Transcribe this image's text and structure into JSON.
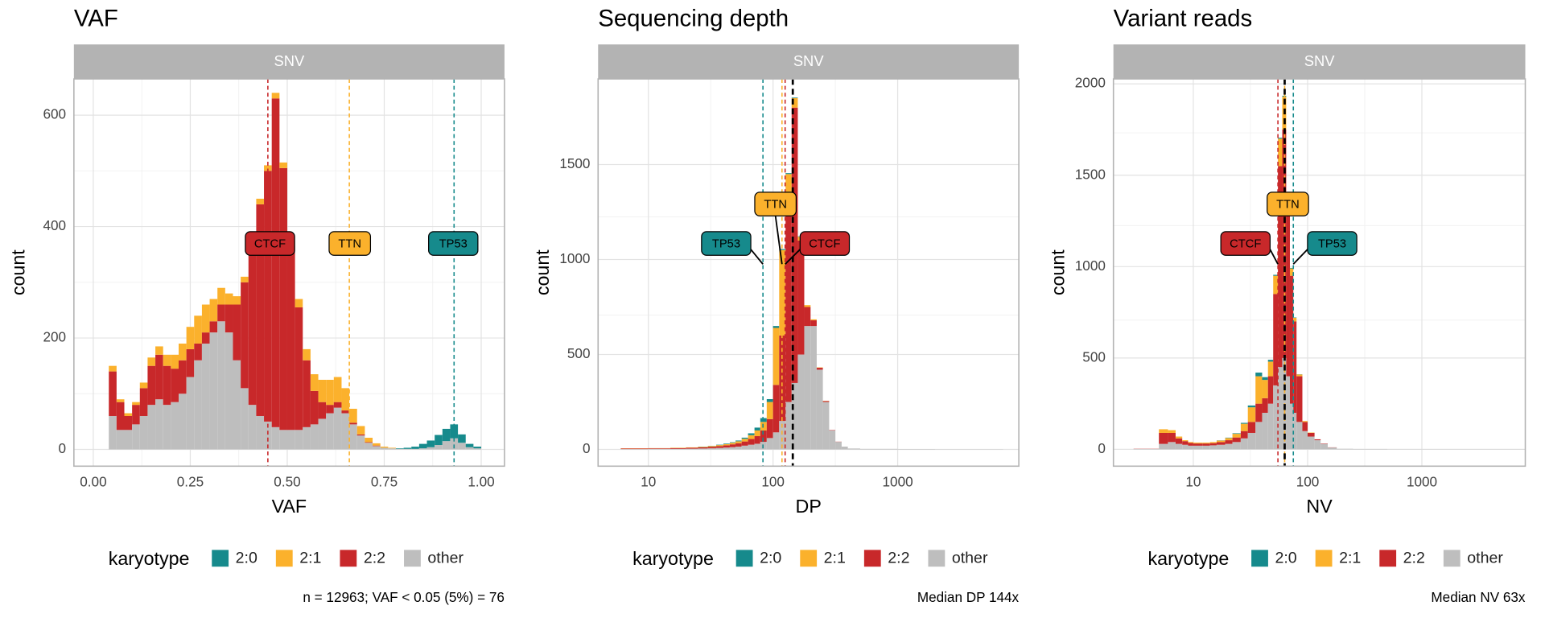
{
  "chart_data": [
    {
      "type": "histogram",
      "title": "VAF",
      "strip": "SNV",
      "x_label": "VAF",
      "y_label": "count",
      "log_x": false,
      "grid": true,
      "legend_title": "karyotype",
      "caption": "n = 12963; VAF < 0.05 (5%) = 76",
      "xlim": [
        -0.05,
        1.06
      ],
      "ylim": [
        -30,
        665
      ],
      "xticks": [
        {
          "value": 0,
          "label": "0.00"
        },
        {
          "value": 0.25,
          "label": "0.25"
        },
        {
          "value": 0.5,
          "label": "0.50"
        },
        {
          "value": 0.75,
          "label": "0.75"
        },
        {
          "value": 1,
          "label": "1.00"
        }
      ],
      "yticks": [
        0,
        200,
        400,
        600
      ],
      "bins": [
        0.04,
        0.06,
        0.08,
        0.1,
        0.12,
        0.14,
        0.16,
        0.18,
        0.2,
        0.22,
        0.24,
        0.26,
        0.28,
        0.3,
        0.32,
        0.34,
        0.36,
        0.38,
        0.4,
        0.42,
        0.44,
        0.46,
        0.48,
        0.5,
        0.52,
        0.54,
        0.56,
        0.58,
        0.6,
        0.62,
        0.64,
        0.66,
        0.68,
        0.7,
        0.72,
        0.74,
        0.76,
        0.78,
        0.8,
        0.82,
        0.84,
        0.86,
        0.88,
        0.9,
        0.92,
        0.94,
        0.96,
        0.98,
        1.0
      ],
      "series": [
        {
          "name": "2:0",
          "color": "#168a8c",
          "values": [
            0,
            0,
            0,
            0,
            0,
            0,
            0,
            0,
            0,
            0,
            0,
            0,
            0,
            0,
            0,
            0,
            0,
            0,
            0,
            0,
            0,
            0,
            0,
            0,
            0,
            0,
            0,
            0,
            0,
            0,
            0,
            0,
            0,
            0,
            0,
            0,
            0,
            1,
            2,
            4,
            8,
            12,
            18,
            22,
            25,
            15,
            6,
            3
          ]
        },
        {
          "name": "2:1",
          "color": "#fbb12c",
          "values": [
            10,
            5,
            5,
            5,
            10,
            15,
            15,
            20,
            25,
            30,
            40,
            50,
            50,
            40,
            30,
            20,
            15,
            10,
            10,
            10,
            10,
            10,
            10,
            10,
            15,
            20,
            30,
            40,
            45,
            45,
            40,
            25,
            15,
            8,
            4,
            2,
            1,
            0,
            0,
            0,
            0,
            0,
            0,
            0,
            0,
            0,
            0,
            0
          ]
        },
        {
          "name": "2:2",
          "color": "#c8282a",
          "values": [
            80,
            50,
            25,
            35,
            50,
            70,
            80,
            70,
            60,
            60,
            50,
            30,
            20,
            20,
            30,
            50,
            100,
            190,
            290,
            380,
            450,
            590,
            470,
            330,
            220,
            120,
            60,
            30,
            15,
            10,
            5,
            3,
            2,
            1,
            1,
            0,
            0,
            0,
            0,
            0,
            0,
            0,
            0,
            0,
            0,
            0,
            0,
            0
          ]
        },
        {
          "name": "other",
          "color": "#bebebe",
          "values": [
            60,
            35,
            35,
            45,
            60,
            80,
            90,
            80,
            85,
            100,
            130,
            160,
            190,
            210,
            230,
            210,
            160,
            110,
            80,
            60,
            50,
            40,
            35,
            35,
            35,
            40,
            45,
            55,
            65,
            75,
            65,
            45,
            25,
            12,
            6,
            3,
            2,
            1,
            1,
            1,
            2,
            4,
            8,
            15,
            20,
            12,
            4,
            2
          ]
        }
      ],
      "annotations": [
        {
          "label": "CTCF",
          "x": 0.45,
          "color": "#c8282a"
        },
        {
          "label": "TTN",
          "x": 0.66,
          "color": "#fbb12c"
        },
        {
          "label": "TP53",
          "x": 0.93,
          "color": "#168a8c"
        }
      ]
    },
    {
      "type": "histogram",
      "title": "Sequencing depth",
      "strip": "SNV",
      "x_label": "DP",
      "y_label": "count",
      "log_x": true,
      "grid": true,
      "legend_title": "karyotype",
      "caption": "Median DP 144x",
      "xlim": [
        3.95,
        9370
      ],
      "ylim": [
        -88,
        1951
      ],
      "xticks": [
        10,
        100,
        1000
      ],
      "yticks": [
        0,
        500,
        1000,
        1500
      ],
      "bins": [
        6,
        10,
        15,
        20,
        25,
        30,
        35,
        40,
        45,
        50,
        56,
        63,
        71,
        79,
        89,
        100,
        112,
        126,
        141,
        158,
        178,
        200,
        224,
        251,
        282,
        316,
        355,
        398,
        500,
        1000,
        2000,
        7000
      ],
      "series": [
        {
          "name": "2:0",
          "color": "#168a8c",
          "values": [
            0,
            0,
            0,
            0,
            1,
            1,
            2,
            3,
            3,
            4,
            6,
            10,
            15,
            20,
            15,
            10,
            5,
            5,
            3,
            2,
            0,
            0,
            0,
            0,
            0,
            0,
            0,
            0,
            0,
            0,
            0
          ]
        },
        {
          "name": "2:1",
          "color": "#fbb12c",
          "values": [
            1,
            1,
            2,
            2,
            3,
            4,
            5,
            6,
            8,
            10,
            14,
            20,
            30,
            45,
            90,
            300,
            450,
            200,
            50,
            20,
            10,
            5,
            2,
            1,
            0,
            0,
            0,
            0,
            0,
            0,
            0
          ]
        },
        {
          "name": "2:2",
          "color": "#c8282a",
          "values": [
            3,
            3,
            4,
            5,
            6,
            8,
            10,
            12,
            15,
            18,
            22,
            30,
            40,
            60,
            100,
            250,
            450,
            1000,
            1450,
            600,
            100,
            30,
            10,
            5,
            2,
            1,
            0,
            0,
            0,
            0,
            0
          ]
        },
        {
          "name": "other",
          "color": "#bebebe",
          "values": [
            2,
            3,
            3,
            4,
            5,
            6,
            8,
            10,
            12,
            15,
            20,
            25,
            30,
            40,
            60,
            90,
            150,
            250,
            350,
            500,
            650,
            650,
            420,
            250,
            100,
            40,
            15,
            5,
            3,
            2,
            1
          ]
        }
      ],
      "annotations": [
        {
          "label": "TP53",
          "x": 83,
          "color": "#168a8c"
        },
        {
          "label": "TTN",
          "x": 118,
          "color": "#fbb12c"
        },
        {
          "label": "CTCF",
          "x": 125,
          "color": "#c8282a"
        }
      ],
      "median_line": {
        "x": 144,
        "color": "#000000"
      }
    },
    {
      "type": "histogram",
      "title": "Variant reads",
      "strip": "SNV",
      "x_label": "NV",
      "y_label": "count",
      "log_x": true,
      "grid": true,
      "legend_title": "karyotype",
      "caption": "Median NV 63x",
      "xlim": [
        2,
        8030
      ],
      "ylim": [
        -92,
        2027
      ],
      "xticks": [
        10,
        100,
        1000
      ],
      "yticks": [
        0,
        500,
        1000,
        1500,
        2000
      ],
      "bins": [
        3,
        5,
        6,
        7,
        8,
        9,
        10,
        12,
        14,
        16,
        19,
        22,
        26,
        30,
        35,
        40,
        45,
        50,
        55,
        60,
        65,
        70,
        75,
        80,
        90,
        100,
        115,
        130,
        150,
        180,
        250,
        500,
        1000,
        8000
      ],
      "series": [
        {
          "name": "2:0",
          "color": "#168a8c",
          "values": [
            0,
            0,
            0,
            0,
            0,
            0,
            0,
            0,
            0,
            1,
            2,
            3,
            5,
            10,
            20,
            15,
            10,
            5,
            5,
            5,
            3,
            3,
            2,
            1,
            0,
            0,
            0,
            0,
            0,
            0,
            0,
            0,
            0
          ]
        },
        {
          "name": "2:1",
          "color": "#fbb12c",
          "values": [
            0,
            20,
            15,
            10,
            5,
            5,
            5,
            5,
            6,
            8,
            12,
            20,
            40,
            80,
            150,
            100,
            80,
            100,
            150,
            180,
            80,
            40,
            20,
            10,
            5,
            2,
            0,
            0,
            0,
            0,
            0,
            0,
            0
          ]
        },
        {
          "name": "2:2",
          "color": "#c8282a",
          "values": [
            1,
            60,
            50,
            30,
            20,
            15,
            12,
            12,
            12,
            15,
            20,
            25,
            40,
            60,
            100,
            80,
            150,
            500,
            1100,
            1250,
            900,
            700,
            500,
            250,
            50,
            20,
            5,
            2,
            1,
            0,
            0,
            0,
            0
          ]
        },
        {
          "name": "other",
          "color": "#bebebe",
          "values": [
            2,
            30,
            40,
            30,
            25,
            20,
            20,
            20,
            22,
            25,
            30,
            40,
            60,
            90,
            150,
            200,
            250,
            350,
            450,
            500,
            400,
            250,
            200,
            150,
            100,
            70,
            50,
            30,
            10,
            3,
            2,
            1,
            1
          ]
        }
      ],
      "annotations": [
        {
          "label": "CTCF",
          "x": 55,
          "color": "#c8282a"
        },
        {
          "label": "TTN",
          "x": 63,
          "color": "#fbb12c"
        },
        {
          "label": "TP53",
          "x": 75,
          "color": "#168a8c"
        }
      ],
      "median_line": {
        "x": 63,
        "color": "#000000"
      }
    }
  ]
}
